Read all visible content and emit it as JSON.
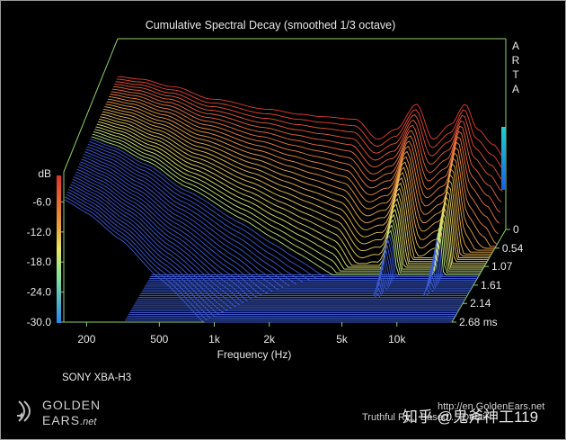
{
  "header": {
    "title": "Cumulative Spectral Decay (smoothed 1/3 octave)"
  },
  "logo": {
    "letters": [
      "A",
      "R",
      "T",
      "A"
    ]
  },
  "device": {
    "name": "SONY XBA-H3"
  },
  "branding": {
    "line1": "GOLDEN",
    "line2": "EARS",
    "suffix": ".net",
    "url": "http://en.GoldenEars.net",
    "tagline": "Truthful Ry... Based ... Detail"
  },
  "watermark": {
    "text": "知乎 @鬼斧神工119"
  },
  "colors": {
    "background": "#000000",
    "axis": "#8fd16a",
    "floor": "#3b5bd6",
    "text": "#e8e8e8"
  },
  "chart_data": {
    "type": "waterfall",
    "title": "Cumulative Spectral Decay (smoothed 1/3 octave)",
    "xlabel": "Frequency (Hz)",
    "ylabel": "dB",
    "zlabel": "ms",
    "x_scale": "log",
    "x_ticks": [
      {
        "value": 200,
        "label": "200"
      },
      {
        "value": 500,
        "label": "500"
      },
      {
        "value": 1000,
        "label": "1k"
      },
      {
        "value": 2000,
        "label": "2k"
      },
      {
        "value": 5000,
        "label": "5k"
      },
      {
        "value": 10000,
        "label": "10k"
      }
    ],
    "x_range": [
      150,
      20000
    ],
    "y_ticks": [
      {
        "value": -6,
        "label": "-6.0"
      },
      {
        "value": -12,
        "label": "-12.0"
      },
      {
        "value": -18,
        "label": "-18.0"
      },
      {
        "value": -24,
        "label": "-24.0"
      },
      {
        "value": -30,
        "label": "-30.0"
      }
    ],
    "y_range": [
      -30,
      0
    ],
    "z_ticks": [
      {
        "value": 0,
        "label": "0"
      },
      {
        "value": 0.54,
        "label": "0.54"
      },
      {
        "value": 1.07,
        "label": "1.07"
      },
      {
        "value": 1.61,
        "label": "1.61"
      },
      {
        "value": 2.14,
        "label": "2.14"
      },
      {
        "value": 2.68,
        "label": "2.68 ms"
      }
    ],
    "z_range": [
      0,
      2.68
    ],
    "slices": 50,
    "initial_response_db": [
      {
        "f": 150,
        "db": 0.5
      },
      {
        "f": 200,
        "db": 0
      },
      {
        "f": 300,
        "db": -1.5
      },
      {
        "f": 500,
        "db": -4
      },
      {
        "f": 1000,
        "db": -6
      },
      {
        "f": 1500,
        "db": -7
      },
      {
        "f": 2000,
        "db": -7.5
      },
      {
        "f": 3000,
        "db": -8
      },
      {
        "f": 4000,
        "db": -12
      },
      {
        "f": 5000,
        "db": -10
      },
      {
        "f": 6500,
        "db": -5
      },
      {
        "f": 8000,
        "db": -12
      },
      {
        "f": 10000,
        "db": -9
      },
      {
        "f": 12000,
        "db": -5
      },
      {
        "f": 14000,
        "db": -10
      },
      {
        "f": 17000,
        "db": -13
      },
      {
        "f": 20000,
        "db": -16
      }
    ]
  }
}
